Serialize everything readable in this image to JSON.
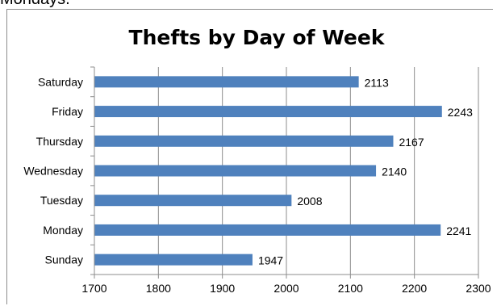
{
  "top_text": "Mondays.",
  "chart_data": {
    "type": "bar",
    "orientation": "horizontal",
    "title": "Thefts by Day of Week",
    "categories": [
      "Saturday",
      "Friday",
      "Thursday",
      "Wednesday",
      "Tuesday",
      "Monday",
      "Sunday"
    ],
    "values": [
      2113,
      2243,
      2167,
      2140,
      2008,
      2241,
      1947
    ],
    "data_labels": [
      "2113",
      "2243",
      "2167",
      "2140",
      "2008",
      "2241",
      "1947"
    ],
    "x_ticks": [
      "1700",
      "1800",
      "1900",
      "2000",
      "2100",
      "2200",
      "2300"
    ],
    "xlim": [
      1700,
      2300
    ],
    "grid": true,
    "legend": "none",
    "bar_color": "#4f81bd",
    "xlabel": "",
    "ylabel": ""
  }
}
